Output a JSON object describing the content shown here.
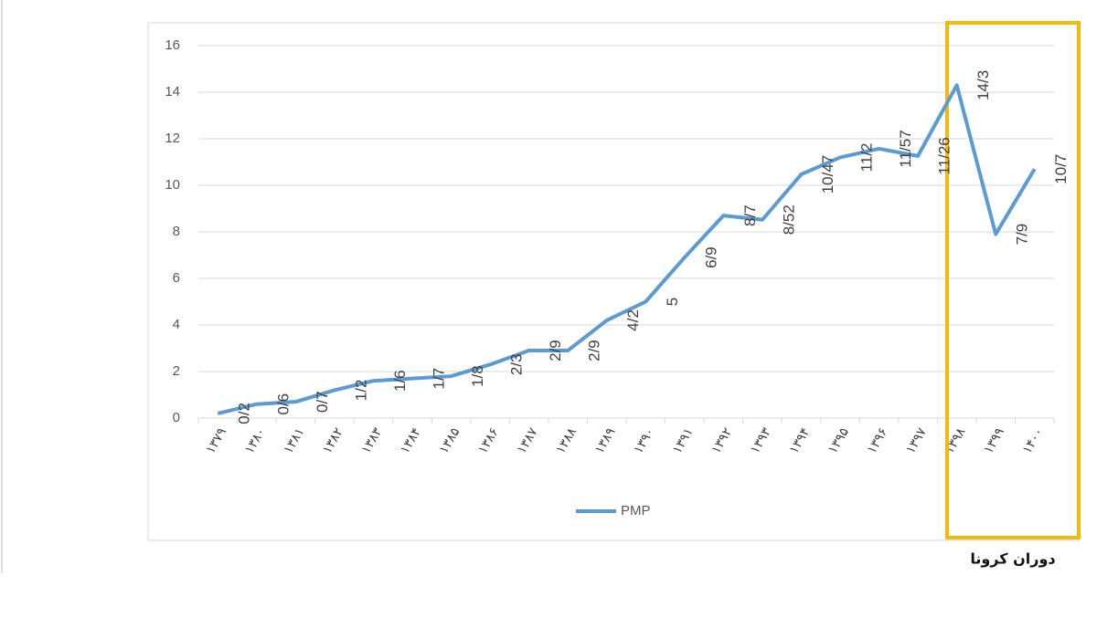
{
  "chart_data": {
    "type": "line",
    "categories": [
      "۱۳۷۹",
      "۱۳۸۰",
      "۱۳۸۱",
      "۱۳۸۲",
      "۱۳۸۳",
      "۱۳۸۴",
      "۱۳۸۵",
      "۱۳۸۶",
      "۱۳۸۷",
      "۱۳۸۸",
      "۱۳۸۹",
      "۱۳۹۰",
      "۱۳۹۱",
      "۱۳۹۲",
      "۱۳۹۳",
      "۱۳۹۴",
      "۱۳۹۵",
      "۱۳۹۶",
      "۱۳۹۷",
      "۱۳۹۸",
      "۱۳۹۹",
      "۱۴۰۰"
    ],
    "series": [
      {
        "name": "PMP",
        "color": "#5b9bd5",
        "values": [
          0.2,
          0.6,
          0.7,
          1.2,
          1.6,
          1.7,
          1.8,
          2.3,
          2.9,
          2.9,
          4.2,
          5,
          6.9,
          8.7,
          8.52,
          10.47,
          11.2,
          11.57,
          11.26,
          14.3,
          7.9,
          10.7
        ],
        "value_labels": [
          "0/2",
          "0/6",
          "0/7",
          "1/2",
          "1/6",
          "1/7",
          "1/8",
          "2/3",
          "2/9",
          "2/9",
          "4/2",
          "5",
          "6/9",
          "8/7",
          "8/52",
          "10/47",
          "11/2",
          "11/57",
          "11/26",
          "14/3",
          "7/9",
          "10/7"
        ]
      }
    ],
    "ylim": [
      0,
      16
    ],
    "yticks": [
      0,
      2,
      4,
      6,
      8,
      10,
      12,
      14,
      16
    ],
    "grid": true,
    "legend": "bottom",
    "annotation": "دوران کرونا",
    "highlight_color": "#f5b80f"
  }
}
